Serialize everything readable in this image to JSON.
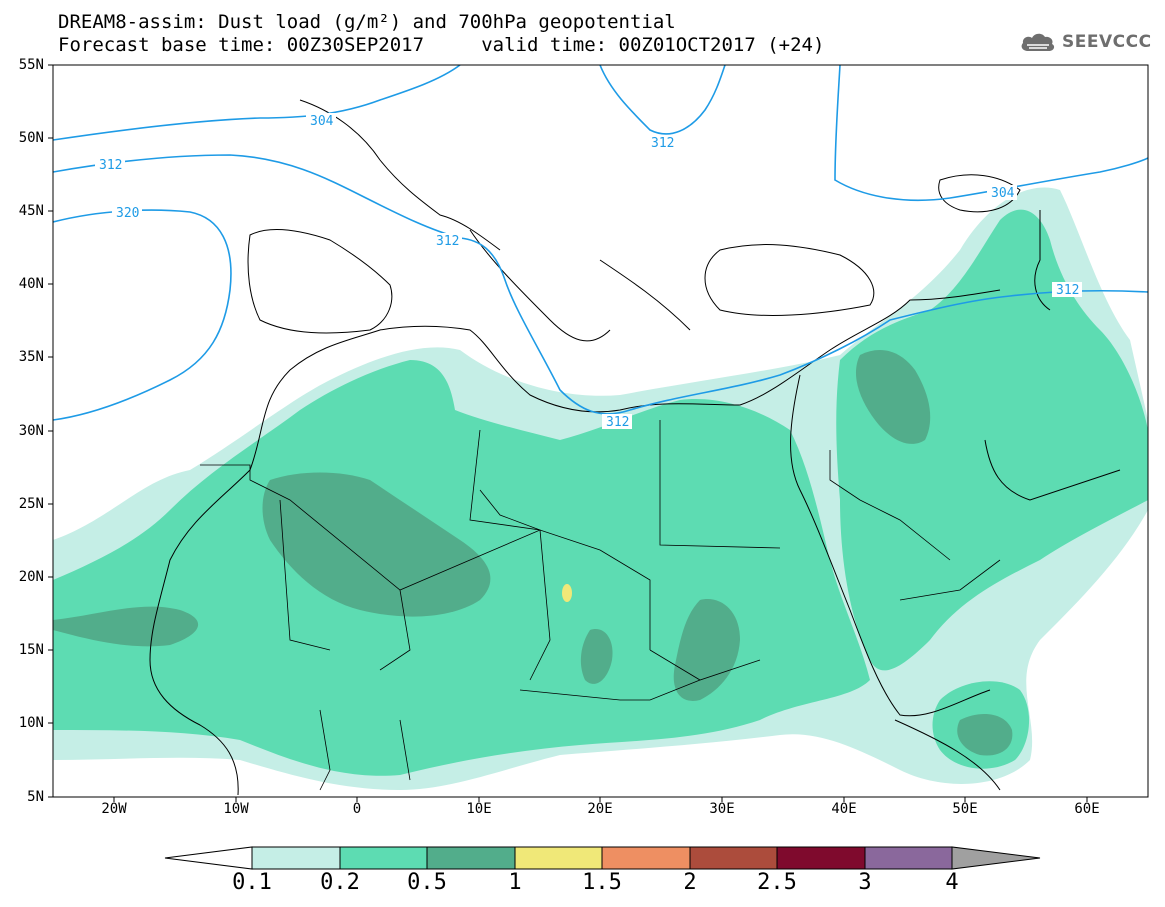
{
  "title": {
    "line1": "DREAM8-assim: Dust load (g/m²) and 700hPa geopotential",
    "line2": "Forecast base time: 00Z30SEP2017     valid time: 00Z01OCT2017 (+24)"
  },
  "logo": {
    "text": "SEEVCCC",
    "icon": "cloud-icon"
  },
  "map": {
    "lon_range": [
      -25,
      65
    ],
    "lat_range": [
      5,
      55
    ],
    "lat_ticks": [
      "55N",
      "50N",
      "45N",
      "40N",
      "35N",
      "30N",
      "25N",
      "20N",
      "15N",
      "10N",
      "5N"
    ],
    "lon_ticks": [
      "20W",
      "10W",
      "0",
      "10E",
      "20E",
      "30E",
      "40E",
      "50E",
      "60E"
    ],
    "contour_labels": [
      {
        "text": "304",
        "line": "304"
      },
      {
        "text": "312",
        "line": "312-west"
      },
      {
        "text": "320",
        "line": "320"
      },
      {
        "text": "312",
        "line": "312-central"
      },
      {
        "text": "312",
        "line": "312-libya"
      },
      {
        "text": "312",
        "line": "312-east"
      },
      {
        "text": "304",
        "line": "304-east"
      },
      {
        "text": "312",
        "line": "312-caspian"
      }
    ],
    "contour_color": "#1e9be6"
  },
  "colorbar": {
    "labels": [
      "0.1",
      "0.2",
      "0.5",
      "1",
      "1.5",
      "2",
      "2.5",
      "3",
      "4"
    ],
    "colors": [
      "#ffffff",
      "#c5eee6",
      "#5ddcb2",
      "#52ad8b",
      "#f0e878",
      "#ee8f62",
      "#ac4c3c",
      "#7f0a2d",
      "#8a689c",
      "#a0a0a0"
    ]
  }
}
